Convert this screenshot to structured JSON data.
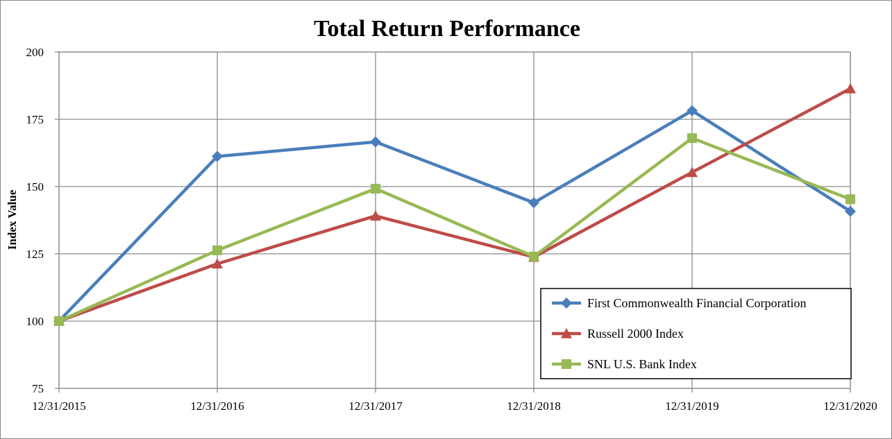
{
  "chart_data": {
    "type": "line",
    "title": "Total Return Performance",
    "xlabel": "",
    "ylabel": "Index Value",
    "categories": [
      "12/31/2015",
      "12/31/2016",
      "12/31/2017",
      "12/31/2018",
      "12/31/2019",
      "12/31/2020"
    ],
    "ylim": [
      75,
      200
    ],
    "yticks": [
      75,
      100,
      125,
      150,
      175,
      200
    ],
    "grid": true,
    "legend_position": "bottom-right",
    "series": [
      {
        "name": "First Commonwealth Financial Corporation",
        "color": "#4a7ebb",
        "marker": "diamond",
        "values": [
          100,
          161.2,
          166.6,
          144.0,
          178.2,
          140.8
        ]
      },
      {
        "name": "Russell 2000 Index",
        "color": "#be4b48",
        "marker": "triangle",
        "values": [
          100,
          121.3,
          139.1,
          123.8,
          155.3,
          186.4
        ]
      },
      {
        "name": "SNL U.S. Bank Index",
        "color": "#98b954",
        "marker": "square",
        "values": [
          100,
          126.3,
          149.2,
          124.0,
          168.0,
          145.3
        ]
      }
    ]
  }
}
